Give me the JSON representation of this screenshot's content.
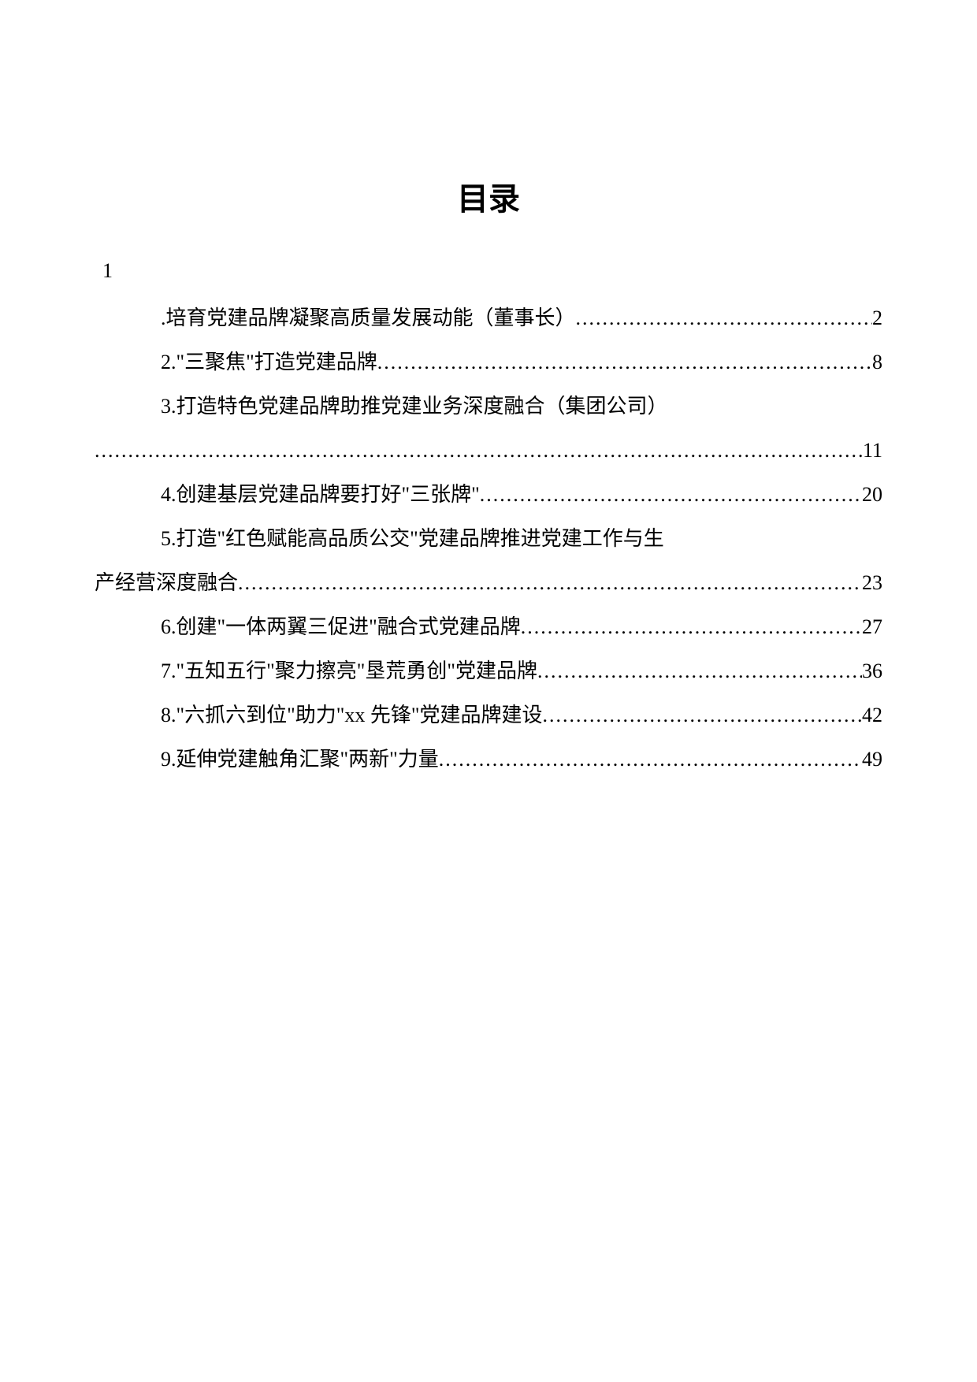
{
  "title": "目录",
  "first_num": "1",
  "entries": [
    {
      "text": ".培育党建品牌凝聚高质量发展动能（董事长）",
      "page": "2",
      "indented": true,
      "wrap": false
    },
    {
      "text": "2.\"三聚焦\"打造党建品牌",
      "page": "8",
      "indented": true,
      "wrap": false
    },
    {
      "text": "3.打造特色党建品牌助推党建业务深度融合（集团公司）",
      "page": "11",
      "indented": true,
      "wrap": true
    },
    {
      "text": "4.创建基层党建品牌要打好\"三张牌\"",
      "page": "20",
      "indented": true,
      "wrap": false
    },
    {
      "text": "5.打造\"红色赋能高品质公交\"党建品牌推进党建工作与生",
      "text2": "产经营深度融合",
      "page": "23",
      "indented": true,
      "wrap": true,
      "continue": true
    },
    {
      "text": "6.创建\"一体两翼三促进\"融合式党建品牌",
      "page": "27",
      "indented": true,
      "wrap": false
    },
    {
      "text": "7.\"五知五行\"聚力擦亮\"垦荒勇创\"党建品牌",
      "page": "36",
      "indented": true,
      "wrap": false
    },
    {
      "text": "8.\"六抓六到位\"助力\"xx 先锋\"党建品牌建设",
      "page": "42",
      "indented": true,
      "wrap": false
    },
    {
      "text": "9.延伸党建触角汇聚\"两新\"力量",
      "page": "49",
      "indented": true,
      "wrap": false
    }
  ],
  "colors": {
    "background": "#ffffff",
    "text": "#000000"
  },
  "fonts": {
    "title_size": 40,
    "body_size": 26,
    "family": "SimSun"
  }
}
